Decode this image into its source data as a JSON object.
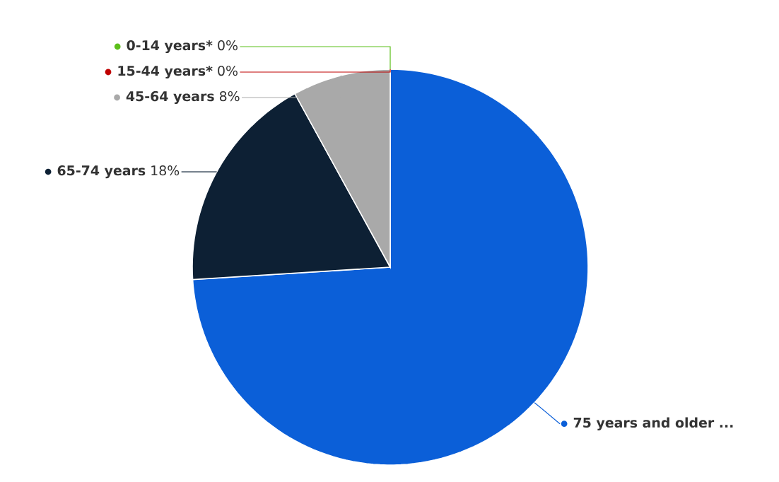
{
  "chart_data": {
    "type": "pie",
    "categories": [
      "75 years and older ...",
      "65-74 years",
      "45-64 years",
      "15-44 years*",
      "0-14 years*"
    ],
    "values": [
      74,
      18,
      8,
      0,
      0
    ],
    "colors": [
      "#0b5fd8",
      "#0d2034",
      "#a9a9a9",
      "#c00000",
      "#5cbf1a"
    ],
    "value_labels": [
      null,
      "18%",
      "8%",
      "0%",
      "0%"
    ],
    "legend": "left"
  }
}
